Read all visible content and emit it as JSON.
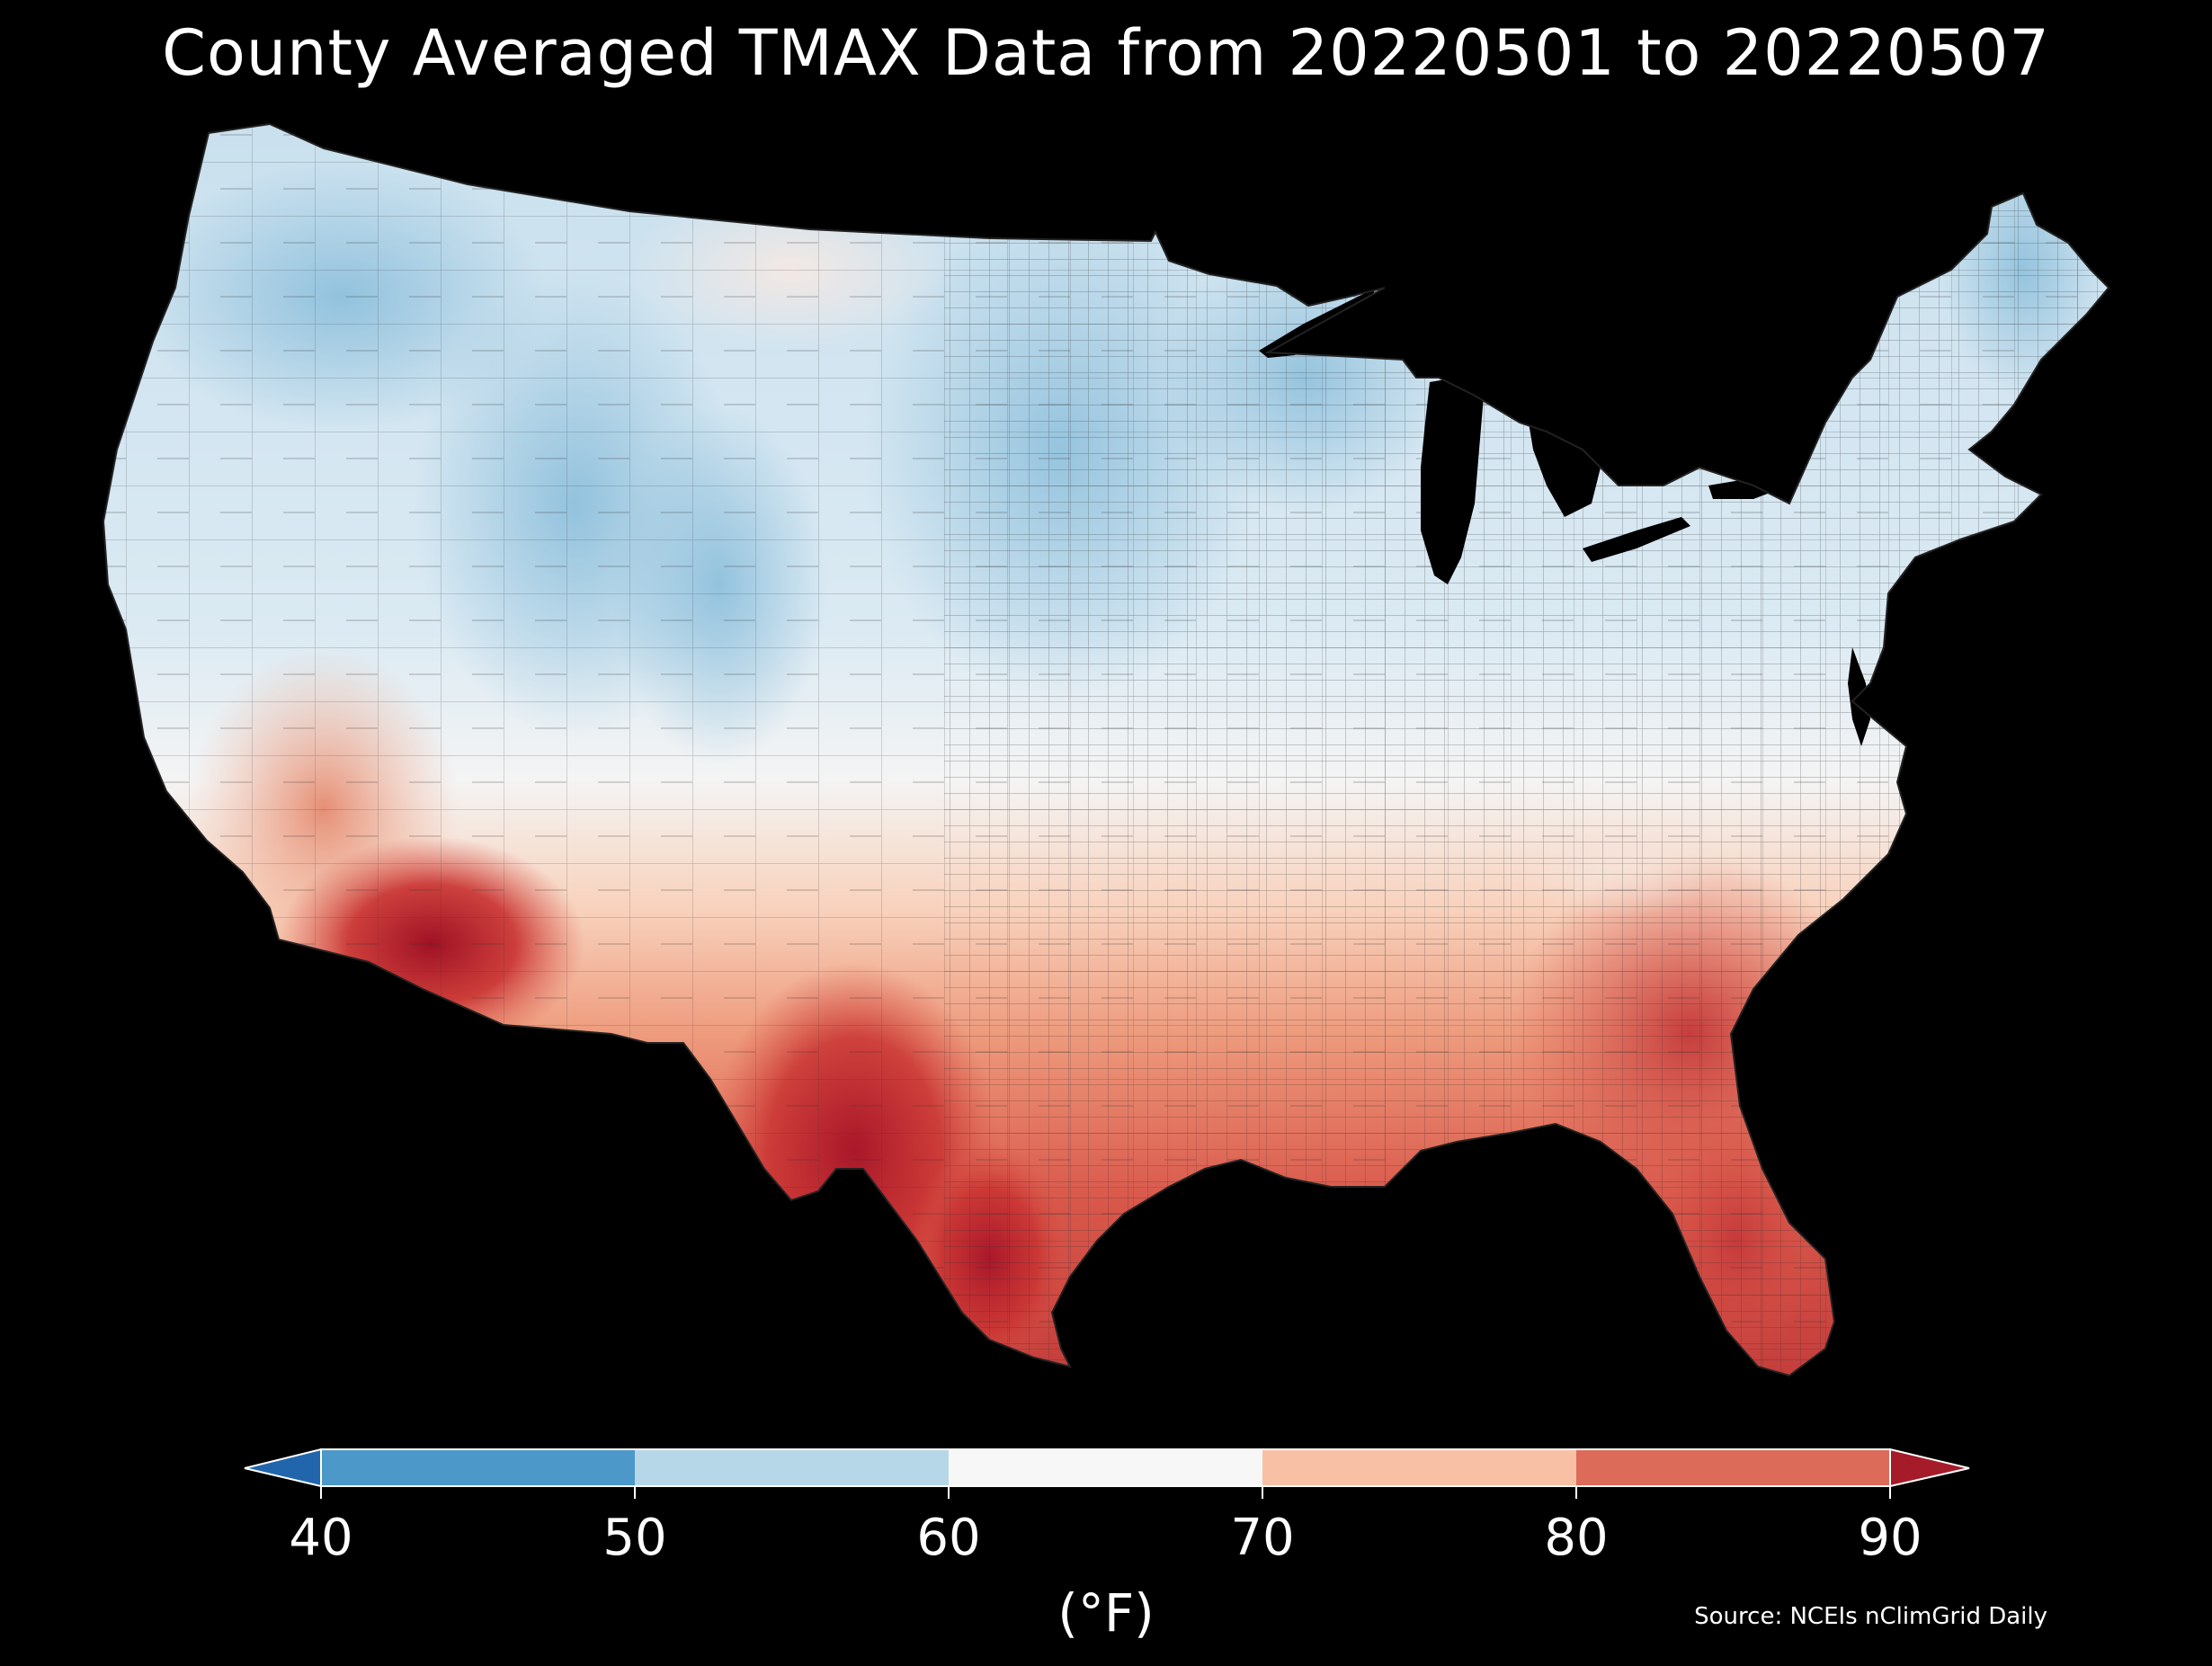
{
  "figure": {
    "title": "County Averaged TMAX Data from 20220501 to 20220507",
    "source": "Source: NCEIs nClimGrid Daily",
    "background": "#000000"
  },
  "colorbar": {
    "unit": "(°F)",
    "ticks": [
      "40",
      "50",
      "60",
      "70",
      "80",
      "90"
    ],
    "bins": [
      {
        "range": "<40",
        "color": "#2166ac"
      },
      {
        "range": "40-50",
        "color": "#4b98c9"
      },
      {
        "range": "50-60",
        "color": "#b6d7e8"
      },
      {
        "range": "60-70",
        "color": "#f7f7f7"
      },
      {
        "range": "70-80",
        "color": "#f8c1a6"
      },
      {
        "range": "80-90",
        "color": "#dd6b59"
      },
      {
        "range": ">90",
        "color": "#a51b2a"
      }
    ],
    "extend": "both"
  },
  "map": {
    "region": "Contiguous United States",
    "variable": "TMAX",
    "unit": "°F",
    "pattern": "coolest in the northern Rockies, northern Plains and upper Midwest (about 50-60); warmest in southern Arizona, south Texas and Florida (above 85)"
  }
}
